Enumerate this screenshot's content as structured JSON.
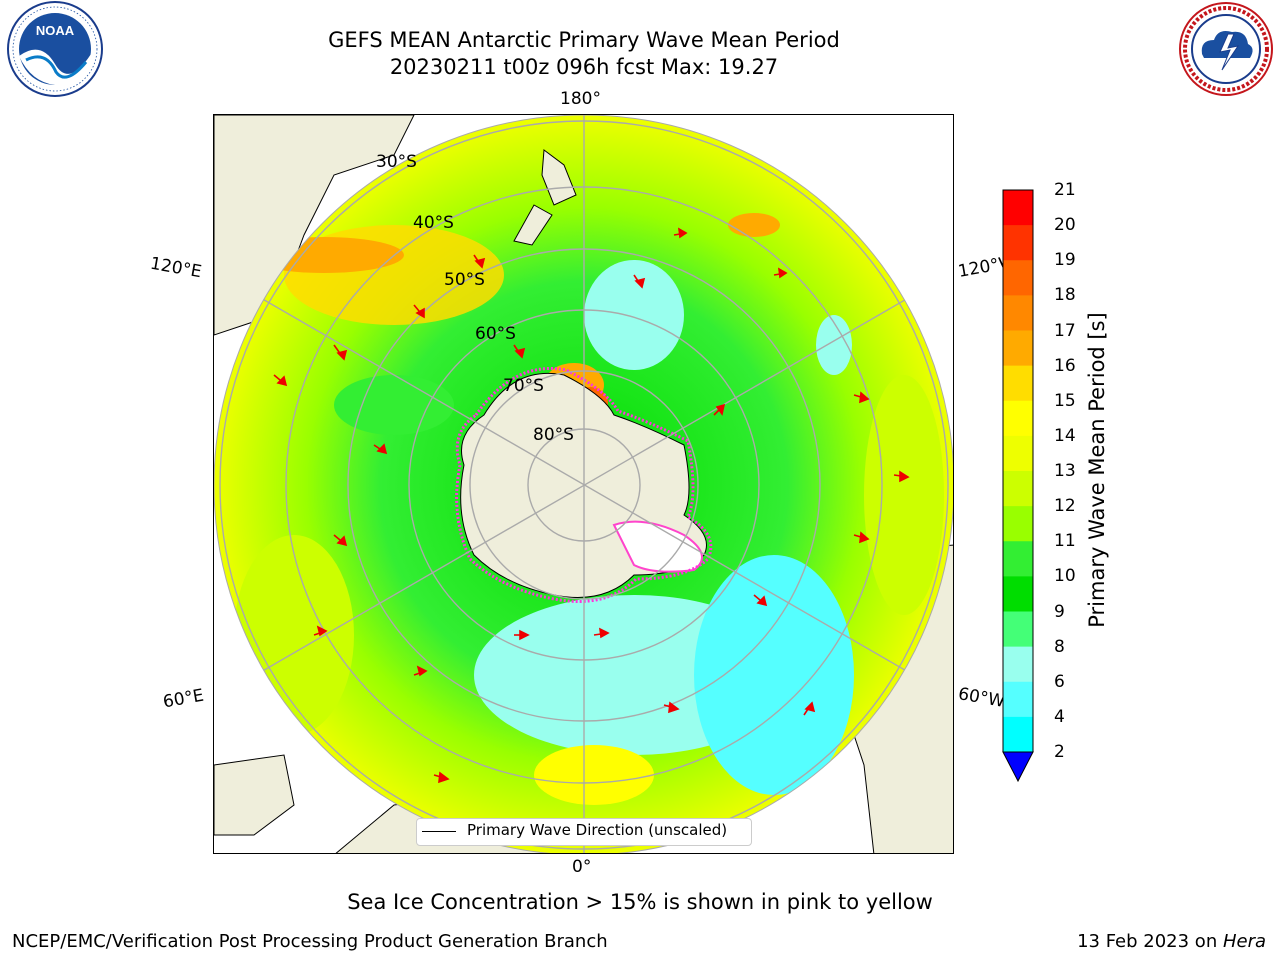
{
  "header": {
    "title_line1": "GEFS MEAN Antarctic Primary Wave Mean Period",
    "title_line2": "20230211 t00z 096h fcst   Max: 19.27"
  },
  "logos": {
    "left": "noaa-logo",
    "right": "national-weather-service-logo"
  },
  "map": {
    "lon_labels": {
      "top": "180°",
      "bottom": "0°",
      "upper_left": "120°E",
      "upper_right": "120°W",
      "lower_left": "60°E",
      "lower_right": "60°W"
    },
    "lat_labels": [
      "30°S",
      "40°S",
      "50°S",
      "60°S",
      "70°S",
      "80°S"
    ],
    "legend": "Primary Wave Direction (unscaled)"
  },
  "colorbar": {
    "label": "Primary Wave Mean Period [s]",
    "ticks": [
      "21",
      "20",
      "19",
      "18",
      "17",
      "16",
      "15",
      "14",
      "13",
      "12",
      "11",
      "10",
      "9",
      "8",
      "6",
      "4",
      "2"
    ],
    "colors": [
      "#ff0000",
      "#ff3300",
      "#ff6600",
      "#ff8800",
      "#ffaa00",
      "#ffdd00",
      "#ffff00",
      "#eeff00",
      "#ccff00",
      "#99ff00",
      "#33ee33",
      "#00dd00",
      "#44ff77",
      "#99ffee",
      "#55ffff",
      "#00ffff",
      "#00ddff",
      "#0088ff",
      "#0000ff"
    ]
  },
  "caption": "Sea Ice Concentration > 15% is shown in pink to yellow",
  "footer": {
    "left": "NCEP/EMC/Verification Post Processing Product Generation Branch",
    "right_date": "13 Feb 2023 on ",
    "right_host": "Hera"
  }
}
